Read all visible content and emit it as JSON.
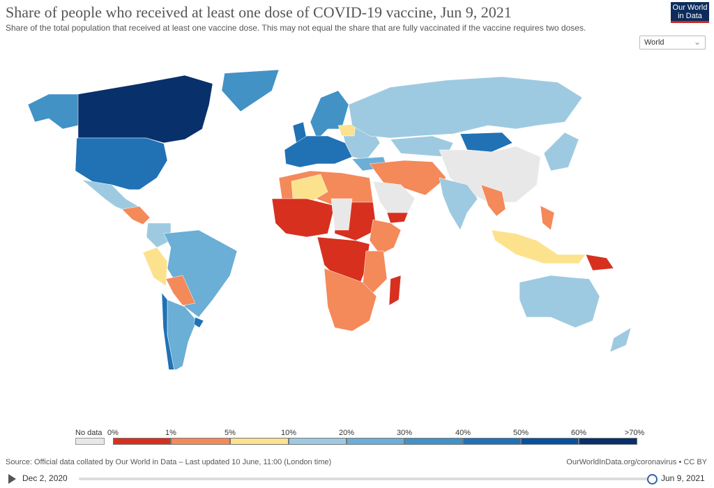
{
  "header": {
    "title": "Share of people who received at least one dose of COVID-19 vaccine, Jun 9, 2021",
    "subtitle": "Share of the total population that received at least one vaccine dose. This may not equal the share that are fully vaccinated if the vaccine requires two doses.",
    "logo_line1": "Our World",
    "logo_line2": "in Data"
  },
  "region_select": {
    "value": "World"
  },
  "legend": {
    "no_data_label": "No data",
    "no_data_color": "#e8e8e8",
    "ticks": [
      "0%",
      "1%",
      "5%",
      "10%",
      "20%",
      "30%",
      "40%",
      "50%",
      "60%",
      ">70%"
    ],
    "bin_colors": [
      "#d7301f",
      "#f4895a",
      "#fde28e",
      "#9ecae1",
      "#6baed6",
      "#4292c6",
      "#2171b5",
      "#08519c",
      "#08306b"
    ]
  },
  "footer": {
    "source": "Source: Official data collated by Our World in Data – Last updated 10 June, 11:00 (London time)",
    "credit": "OurWorldInData.org/coronavirus • CC BY"
  },
  "timeline": {
    "start_date": "Dec 2, 2020",
    "end_date": "Jun 9, 2021",
    "position": 1.0
  }
}
